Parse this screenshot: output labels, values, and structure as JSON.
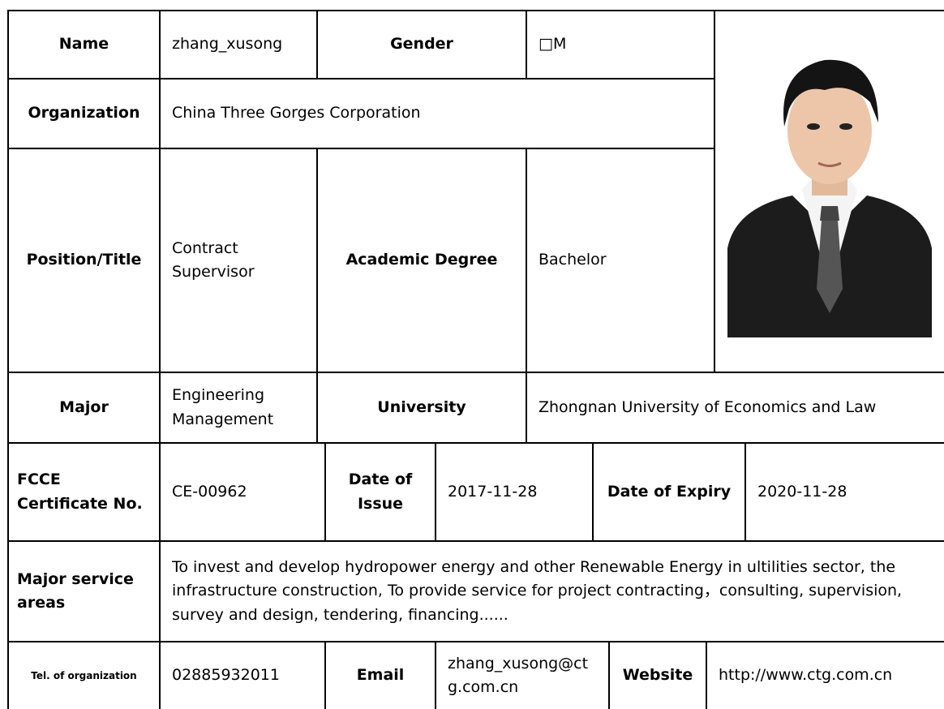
{
  "table": {
    "rows": [
      [
        "Name",
        "zhang_xusong",
        "Gender",
        "□M"
      ],
      [
        "Organization",
        "China Three Gorges Corporation"
      ],
      [
        "Position/Title",
        "Contract Supervisor",
        "Academic Degree",
        "Bachelor"
      ],
      [
        "Major",
        "Engineering Management",
        "University",
        "Zhongnan University of Economics and Law"
      ],
      [
        "FCCE Certificate No.",
        "CE-00962",
        "Date of Issue",
        "2017-11-28",
        "Date of Expiry",
        "2020-11-28"
      ],
      [
        "Major service areas",
        "To invest and develop hydropower energy and other Renewable Energy in ultilities sector, the infrastructure construction, To provide service for project contracting，consulting, supervision, survey and design, tendering, financing......"
      ],
      [
        "Tel. of organization",
        "02885932011",
        "Email",
        "zhang_xusong@ctg.com.cn",
        "Website",
        "http://www.ctg.com.cn"
      ]
    ]
  }
}
